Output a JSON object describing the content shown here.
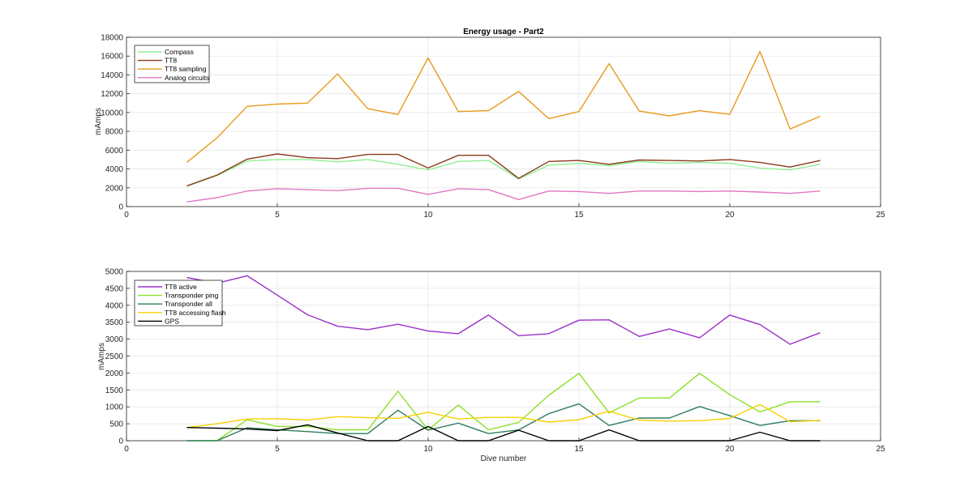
{
  "figure": {
    "title": "Energy usage - Part2",
    "background": "#ffffff"
  },
  "chart_data": [
    {
      "type": "line",
      "title": "Energy usage - Part2",
      "xlabel": "",
      "ylabel": "mAmps",
      "xlim": [
        0,
        25
      ],
      "ylim": [
        0,
        18000
      ],
      "xticks": [
        0,
        5,
        10,
        15,
        20,
        25
      ],
      "yticks": [
        0,
        2000,
        4000,
        6000,
        8000,
        10000,
        12000,
        14000,
        16000,
        18000
      ],
      "grid": true,
      "legend_position": "top-left",
      "x": [
        2,
        3,
        4,
        5,
        6,
        7,
        8,
        9,
        10,
        11,
        12,
        13,
        14,
        15,
        16,
        17,
        18,
        19,
        20,
        21,
        22,
        23
      ],
      "series": [
        {
          "name": "Compass",
          "color": "#90ee90",
          "values": [
            2150,
            3300,
            4850,
            5000,
            5000,
            4750,
            5000,
            4500,
            3900,
            4800,
            4900,
            2950,
            4400,
            4600,
            4350,
            4800,
            4600,
            4700,
            4600,
            4100,
            3900,
            4500
          ]
        },
        {
          "name": "TT8",
          "color": "#8b3a1a",
          "values": [
            2200,
            3350,
            5050,
            5600,
            5200,
            5100,
            5550,
            5550,
            4100,
            5450,
            5450,
            3000,
            4800,
            4900,
            4500,
            4950,
            4900,
            4850,
            5000,
            4700,
            4200,
            4900
          ]
        },
        {
          "name": "TT8 sampling",
          "color": "#e89a1a",
          "values": [
            4700,
            7300,
            10650,
            10900,
            11000,
            14100,
            10400,
            9800,
            15800,
            10100,
            10200,
            12250,
            9350,
            10100,
            15200,
            10150,
            9650,
            10200,
            9800,
            16500,
            8250,
            9600
          ]
        },
        {
          "name": "Analog circuits",
          "color": "#e377c2",
          "values": [
            500,
            950,
            1650,
            1900,
            1800,
            1700,
            1950,
            1950,
            1300,
            1900,
            1800,
            750,
            1650,
            1600,
            1400,
            1650,
            1650,
            1600,
            1650,
            1550,
            1400,
            1650
          ]
        }
      ]
    },
    {
      "type": "line",
      "title": "",
      "xlabel": "Dive number",
      "ylabel": "mAmps",
      "xlim": [
        0,
        25
      ],
      "ylim": [
        0,
        5000
      ],
      "xticks": [
        0,
        5,
        10,
        15,
        20,
        25
      ],
      "yticks": [
        0,
        500,
        1000,
        1500,
        2000,
        2500,
        3000,
        3500,
        4000,
        4500,
        5000
      ],
      "grid": true,
      "legend_position": "top-left",
      "x": [
        2,
        3,
        4,
        5,
        6,
        7,
        8,
        9,
        10,
        11,
        12,
        13,
        14,
        15,
        16,
        17,
        18,
        19,
        20,
        21,
        22,
        23
      ],
      "series": [
        {
          "name": "TT8 active",
          "color": "#9b30c8",
          "values": [
            4820,
            4650,
            4870,
            4300,
            3720,
            3380,
            3280,
            3440,
            3240,
            3160,
            3710,
            3100,
            3160,
            3560,
            3570,
            3080,
            3300,
            3040,
            3710,
            3430,
            2850,
            3190
          ]
        },
        {
          "name": "Transponder ping",
          "color": "#8ee02a",
          "values": [
            0,
            0,
            620,
            420,
            420,
            320,
            320,
            1460,
            320,
            1050,
            320,
            540,
            1340,
            1990,
            820,
            1260,
            1260,
            1990,
            1360,
            850,
            1150,
            1150
          ]
        },
        {
          "name": "Transponder all",
          "color": "#2e7d5e",
          "values": [
            0,
            0,
            380,
            320,
            270,
            210,
            210,
            900,
            310,
            520,
            210,
            320,
            800,
            1090,
            450,
            670,
            670,
            1010,
            740,
            450,
            590,
            590
          ]
        },
        {
          "name": "TT8 accessing flash",
          "color": "#f5d000",
          "values": [
            390,
            500,
            640,
            650,
            610,
            710,
            680,
            660,
            840,
            640,
            690,
            690,
            550,
            620,
            870,
            610,
            580,
            590,
            660,
            1070,
            560,
            600
          ]
        },
        {
          "name": "GPS",
          "color": "#000000",
          "values": [
            390,
            370,
            350,
            300,
            470,
            230,
            0,
            0,
            420,
            0,
            0,
            310,
            0,
            0,
            320,
            0,
            0,
            0,
            0,
            250,
            0,
            0
          ]
        }
      ]
    }
  ]
}
